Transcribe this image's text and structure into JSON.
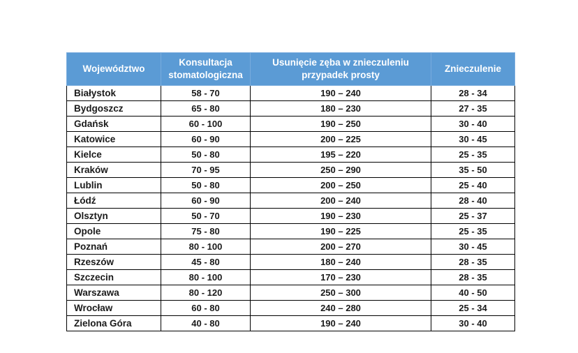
{
  "page": {
    "background": "#ffffff"
  },
  "table": {
    "header_bg": "#5B9BD5",
    "columns": [
      "Województwo",
      "Konsultacja stomatologiczna",
      "Usunięcie zęba w znieczuleniu przypadek prosty",
      "Znieczulenie"
    ],
    "rows": [
      {
        "city": "Białystok",
        "consultation": "58 - 70",
        "extraction": "190 – 240",
        "anesthesia": "28 - 34"
      },
      {
        "city": "Bydgoszcz",
        "consultation": "65 - 80",
        "extraction": "180 – 230",
        "anesthesia": "27 - 35"
      },
      {
        "city": "Gdańsk",
        "consultation": "60 - 100",
        "extraction": "190 – 250",
        "anesthesia": "30 - 40"
      },
      {
        "city": "Katowice",
        "consultation": "60 - 90",
        "extraction": "200 – 225",
        "anesthesia": "30 - 45"
      },
      {
        "city": "Kielce",
        "consultation": "50 - 80",
        "extraction": "195 – 220",
        "anesthesia": "25 - 35"
      },
      {
        "city": "Kraków",
        "consultation": "70 - 95",
        "extraction": "250 – 290",
        "anesthesia": "35 - 50"
      },
      {
        "city": "Lublin",
        "consultation": "50 - 80",
        "extraction": "200 – 250",
        "anesthesia": "25 - 40"
      },
      {
        "city": "Łódź",
        "consultation": "60 - 90",
        "extraction": "200 – 240",
        "anesthesia": "28 - 40"
      },
      {
        "city": "Olsztyn",
        "consultation": "50 - 70",
        "extraction": "190 – 230",
        "anesthesia": "25 - 37"
      },
      {
        "city": "Opole",
        "consultation": "75 - 80",
        "extraction": "190 – 225",
        "anesthesia": "25 - 35"
      },
      {
        "city": "Poznań",
        "consultation": "80 - 100",
        "extraction": "200 – 270",
        "anesthesia": "30 - 45"
      },
      {
        "city": "Rzeszów",
        "consultation": "45 - 80",
        "extraction": "180 – 240",
        "anesthesia": "28 - 35"
      },
      {
        "city": "Szczecin",
        "consultation": "80 - 100",
        "extraction": "170 – 230",
        "anesthesia": "28 - 35"
      },
      {
        "city": "Warszawa",
        "consultation": "80 - 120",
        "extraction": "250 – 300",
        "anesthesia": "40 - 50"
      },
      {
        "city": "Wrocław",
        "consultation": "60 - 80",
        "extraction": "240 – 280",
        "anesthesia": "25 - 34"
      },
      {
        "city": "Zielona Góra",
        "consultation": "40 - 80",
        "extraction": "190 – 240",
        "anesthesia": "30 - 40"
      }
    ]
  },
  "chart_data": {
    "type": "table",
    "title": "",
    "columns": [
      "Województwo",
      "Konsultacja stomatologiczna",
      "Usunięcie zęba w znieczuleniu przypadek prosty",
      "Znieczulenie"
    ],
    "rows": [
      [
        "Białystok",
        "58 - 70",
        "190 – 240",
        "28 - 34"
      ],
      [
        "Bydgoszcz",
        "65 - 80",
        "180 – 230",
        "27 - 35"
      ],
      [
        "Gdańsk",
        "60 - 100",
        "190 – 250",
        "30 - 40"
      ],
      [
        "Katowice",
        "60 - 90",
        "200 – 225",
        "30 - 45"
      ],
      [
        "Kielce",
        "50 - 80",
        "195 – 220",
        "25 - 35"
      ],
      [
        "Kraków",
        "70 - 95",
        "250 – 290",
        "35 - 50"
      ],
      [
        "Lublin",
        "50 - 80",
        "200 – 250",
        "25 - 40"
      ],
      [
        "Łódź",
        "60 - 90",
        "200 – 240",
        "28 - 40"
      ],
      [
        "Olsztyn",
        "50 - 70",
        "190 – 230",
        "25 - 37"
      ],
      [
        "Opole",
        "75 - 80",
        "190 – 225",
        "25 - 35"
      ],
      [
        "Poznań",
        "80 - 100",
        "200 – 270",
        "30 - 45"
      ],
      [
        "Rzeszów",
        "45 - 80",
        "180 – 240",
        "28 - 35"
      ],
      [
        "Szczecin",
        "80 - 100",
        "170 – 230",
        "28 - 35"
      ],
      [
        "Warszawa",
        "80 - 120",
        "250 – 300",
        "40 - 50"
      ],
      [
        "Wrocław",
        "60 - 80",
        "240 – 280",
        "25 - 34"
      ],
      [
        "Zielona Góra",
        "40 - 80",
        "190 – 240",
        "30 - 40"
      ]
    ]
  }
}
